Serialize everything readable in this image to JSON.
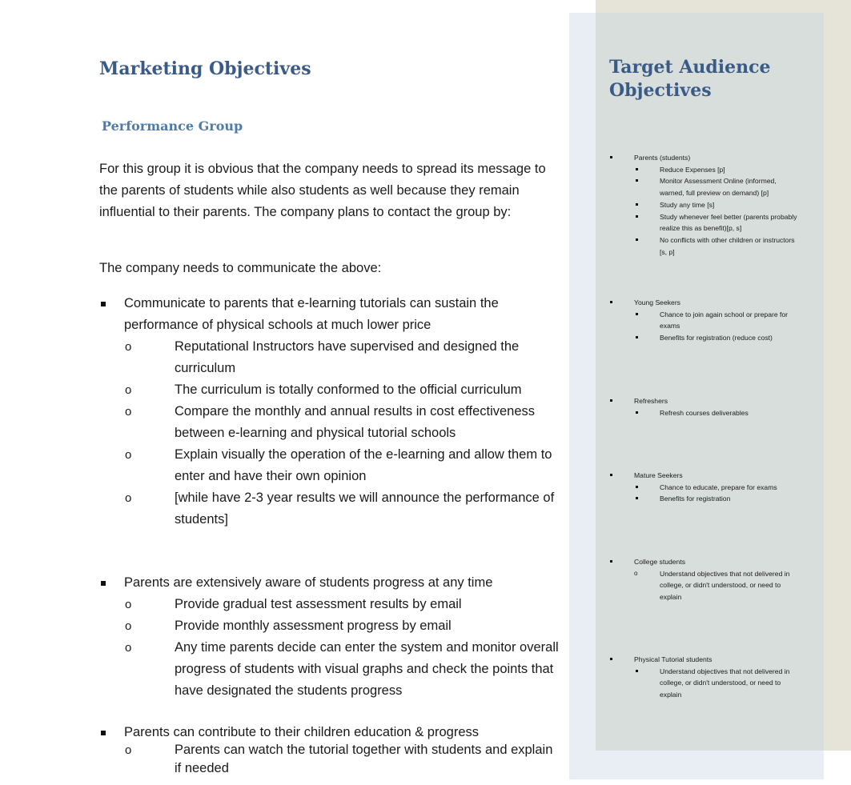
{
  "main": {
    "heading": "Marketing Objectives",
    "subheading": "Performance Group",
    "intro_paragraph": "For this group it is obvious that the company needs to spread its message to the parents of students while also students as well because they remain influential to their parents. The company plans to contact the group by:",
    "communicate_paragraph": "The company needs to communicate the above:",
    "bullets": [
      {
        "text": "Communicate to parents that e-learning tutorials can sustain the performance of physical schools at much lower price",
        "subitems": [
          "Reputational Instructors have supervised and designed the curriculum",
          "The curriculum is totally conformed to the official curriculum",
          "Compare the monthly and annual results in cost effectiveness between e-learning and physical tutorial schools",
          "Explain visually the operation of the e-learning and allow them to enter and have their own opinion",
          "[while have 2-3 year results we will announce the performance of students]"
        ]
      },
      {
        "text": "Parents are extensively aware of students progress at any time",
        "subitems": [
          "Provide gradual test assessment results by email",
          "Provide monthly assessment progress by email",
          "Any time parents decide can enter the system and monitor overall progress of students with visual graphs and check the points that have designated the students progress"
        ]
      },
      {
        "text": "Parents can contribute to their children education & progress",
        "subitems": [
          "Parents can watch the tutorial together with students and explain if needed"
        ]
      }
    ]
  },
  "sidebar": {
    "title": "Target Audience Objectives",
    "groups": [
      {
        "label": "Parents (students)",
        "items": [
          "Reduce Expenses [p]",
          "Monitor Assessment Online (informed, warned, full preview on demand) [p]",
          "Study any time [s]",
          "Study whenever feel better (parents probably realize this as benefit)[p, s]",
          "No conflicts with other children or instructors [s, p]"
        ]
      },
      {
        "label": "Young Seekers",
        "items": [
          "Chance to join again school or prepare for exams",
          "Benefits for registration (reduce cost)"
        ]
      },
      {
        "label": "Refreshers",
        "items": [
          "Refresh courses deliverables"
        ]
      },
      {
        "label": "Mature Seekers",
        "items": [
          "Chance to educate, prepare for exams",
          "Benefits for registration"
        ]
      },
      {
        "label": "College students",
        "items": [
          "Understand objectives that not delivered in college, or didn't understood, or need to explain"
        ]
      },
      {
        "label": "Physical Tutorial students",
        "items": [
          "Understand objectives that not delivered in college, or didn't understood, or need to explain"
        ]
      }
    ]
  }
}
